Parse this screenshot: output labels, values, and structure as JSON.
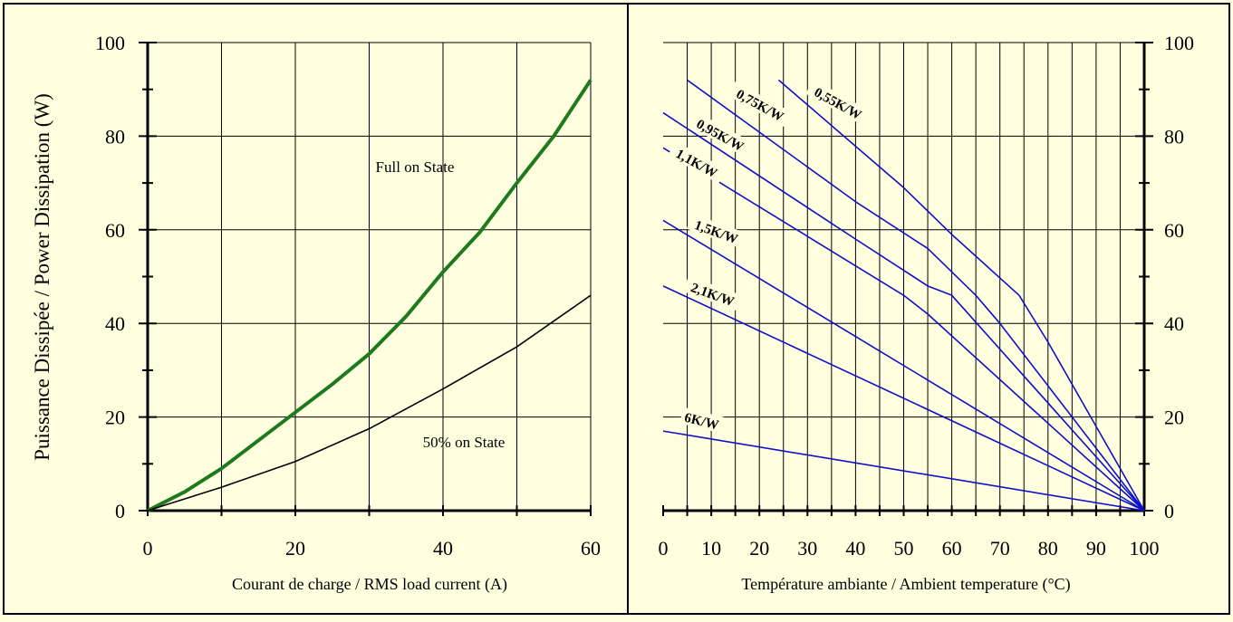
{
  "colors": {
    "background": "#ffffe0",
    "full_on": "#1f7a1f",
    "half_on": "#000000",
    "derating": "#1010c8",
    "grid": "#000000"
  },
  "chart_data": [
    {
      "type": "line",
      "xlabel": "Courant de charge / RMS load current (A)",
      "ylabel": "Puissance Dissipée / Power Dissipation (W)",
      "xlim": [
        0,
        60
      ],
      "ylim": [
        0,
        100
      ],
      "xticks": [
        "0",
        "20",
        "40",
        "60"
      ],
      "yticks": [
        "0",
        "20",
        "40",
        "60",
        "80",
        "100"
      ],
      "grid": true,
      "series": [
        {
          "name": "Full on State",
          "x": [
            0,
            5,
            10,
            15,
            20,
            25,
            30,
            35,
            40,
            45,
            50,
            55,
            60
          ],
          "y": [
            0,
            4,
            9,
            15,
            21,
            27,
            33.5,
            41.5,
            51,
            59.5,
            70,
            80,
            92
          ]
        },
        {
          "name": "50% on State",
          "x": [
            0,
            10,
            20,
            30,
            40,
            50,
            60
          ],
          "y": [
            0,
            5,
            10.5,
            17.5,
            26,
            35,
            46
          ]
        }
      ]
    },
    {
      "type": "line",
      "xlabel": "Température ambiante / Ambient temperature (°C)",
      "xlim": [
        0,
        100
      ],
      "ylim": [
        0,
        100
      ],
      "xticks": [
        "0",
        "10",
        "20",
        "30",
        "40",
        "50",
        "60",
        "70",
        "80",
        "90",
        "100"
      ],
      "yticks": [
        "0",
        "20",
        "40",
        "60",
        "80",
        "100"
      ],
      "grid": true,
      "series": [
        {
          "name": "0,55K/W",
          "x": [
            24,
            50,
            60,
            74,
            80,
            100
          ],
          "y": [
            92,
            69,
            59,
            46,
            36,
            0
          ]
        },
        {
          "name": "0,75K/W",
          "x": [
            5,
            40,
            55,
            65,
            70,
            100
          ],
          "y": [
            92,
            66,
            56,
            46,
            40,
            0
          ]
        },
        {
          "name": "0,95K/W",
          "x": [
            0,
            40,
            55,
            60,
            100
          ],
          "y": [
            85,
            58,
            48,
            46,
            0
          ]
        },
        {
          "name": "1,1K/W",
          "x": [
            0,
            50,
            55,
            100
          ],
          "y": [
            77.5,
            46,
            42,
            0
          ]
        },
        {
          "name": "1,5K/W",
          "x": [
            0,
            100
          ],
          "y": [
            62,
            0
          ]
        },
        {
          "name": "2,1K/W",
          "x": [
            0,
            100
          ],
          "y": [
            48,
            0
          ]
        },
        {
          "name": "6K/W",
          "x": [
            0,
            100
          ],
          "y": [
            17,
            0
          ]
        }
      ]
    }
  ],
  "annotations": {
    "full_on": "Full on State",
    "half_on": "50% on State"
  }
}
